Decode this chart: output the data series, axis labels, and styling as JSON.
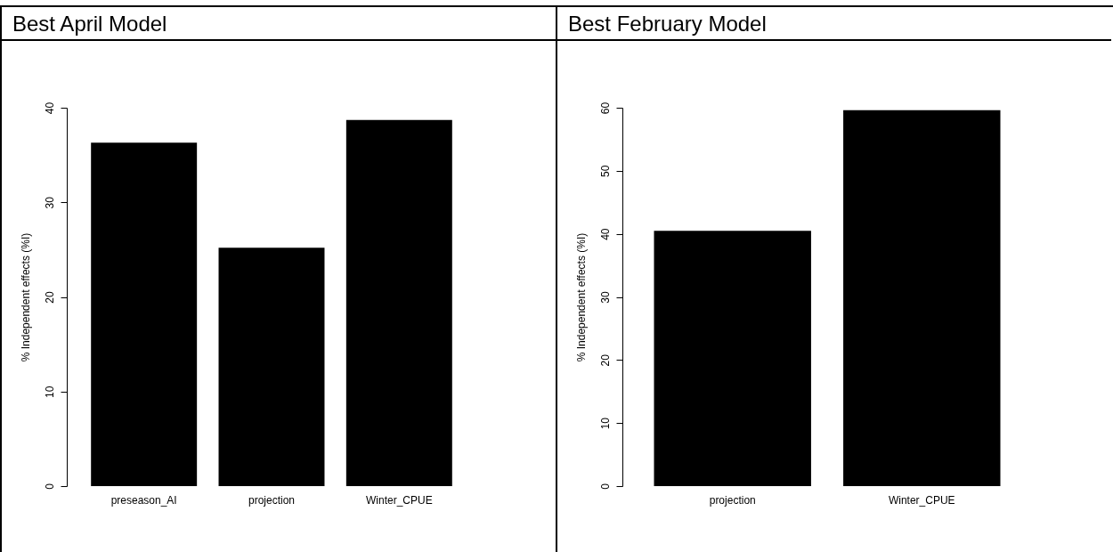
{
  "chart_data": [
    {
      "type": "bar",
      "title": "Best April Model",
      "ylabel": "% Independent effects (%I)",
      "categories": [
        "preseason_AI",
        "projection",
        "Winter_CPUE"
      ],
      "values": [
        36.3,
        25.2,
        38.7
      ],
      "color": "#000000",
      "ylim": [
        0,
        40
      ],
      "yticks": [
        0,
        10,
        20,
        30,
        40
      ],
      "grid": false
    },
    {
      "type": "bar",
      "title": "Best February Model",
      "ylabel": "% Independent effects (%I)",
      "categories": [
        "projection",
        "Winter_CPUE"
      ],
      "values": [
        40.5,
        59.6
      ],
      "color": "#000000",
      "ylim": [
        0,
        60
      ],
      "yticks": [
        0,
        10,
        20,
        30,
        40,
        50,
        60
      ],
      "grid": false
    }
  ]
}
